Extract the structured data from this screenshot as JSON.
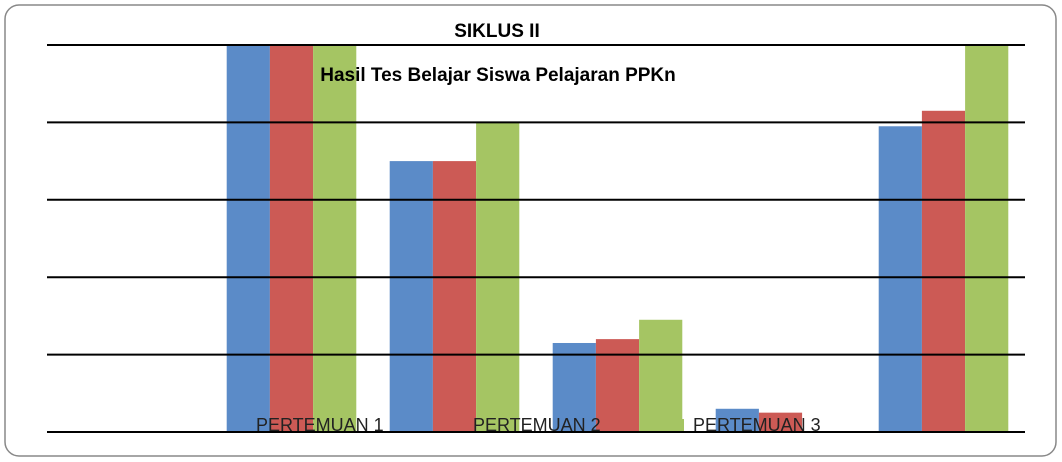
{
  "chart_data": {
    "type": "bar",
    "title": "SIKLUS II",
    "subtitle": "Hasil Tes Belajar Siswa Pelajaran PPKn",
    "categories": [
      null,
      null,
      null,
      null,
      null,
      null
    ],
    "series": [
      {
        "name": "PERTEMUAN 1",
        "color": "#5b8bc8",
        "values": [
          0,
          100,
          70,
          23,
          6,
          79
        ]
      },
      {
        "name": "PERTEMUAN 2",
        "color": "#cc5a55",
        "values": [
          0,
          100,
          70,
          24,
          5,
          83
        ]
      },
      {
        "name": "PERTEMUAN 3",
        "color": "#a5c563",
        "values": [
          0,
          100,
          80,
          29,
          0,
          100
        ]
      }
    ],
    "ylim": [
      0,
      100
    ],
    "yticks": [
      0,
      20,
      40,
      60,
      80,
      100
    ],
    "grid": true,
    "legend": "bottom"
  }
}
